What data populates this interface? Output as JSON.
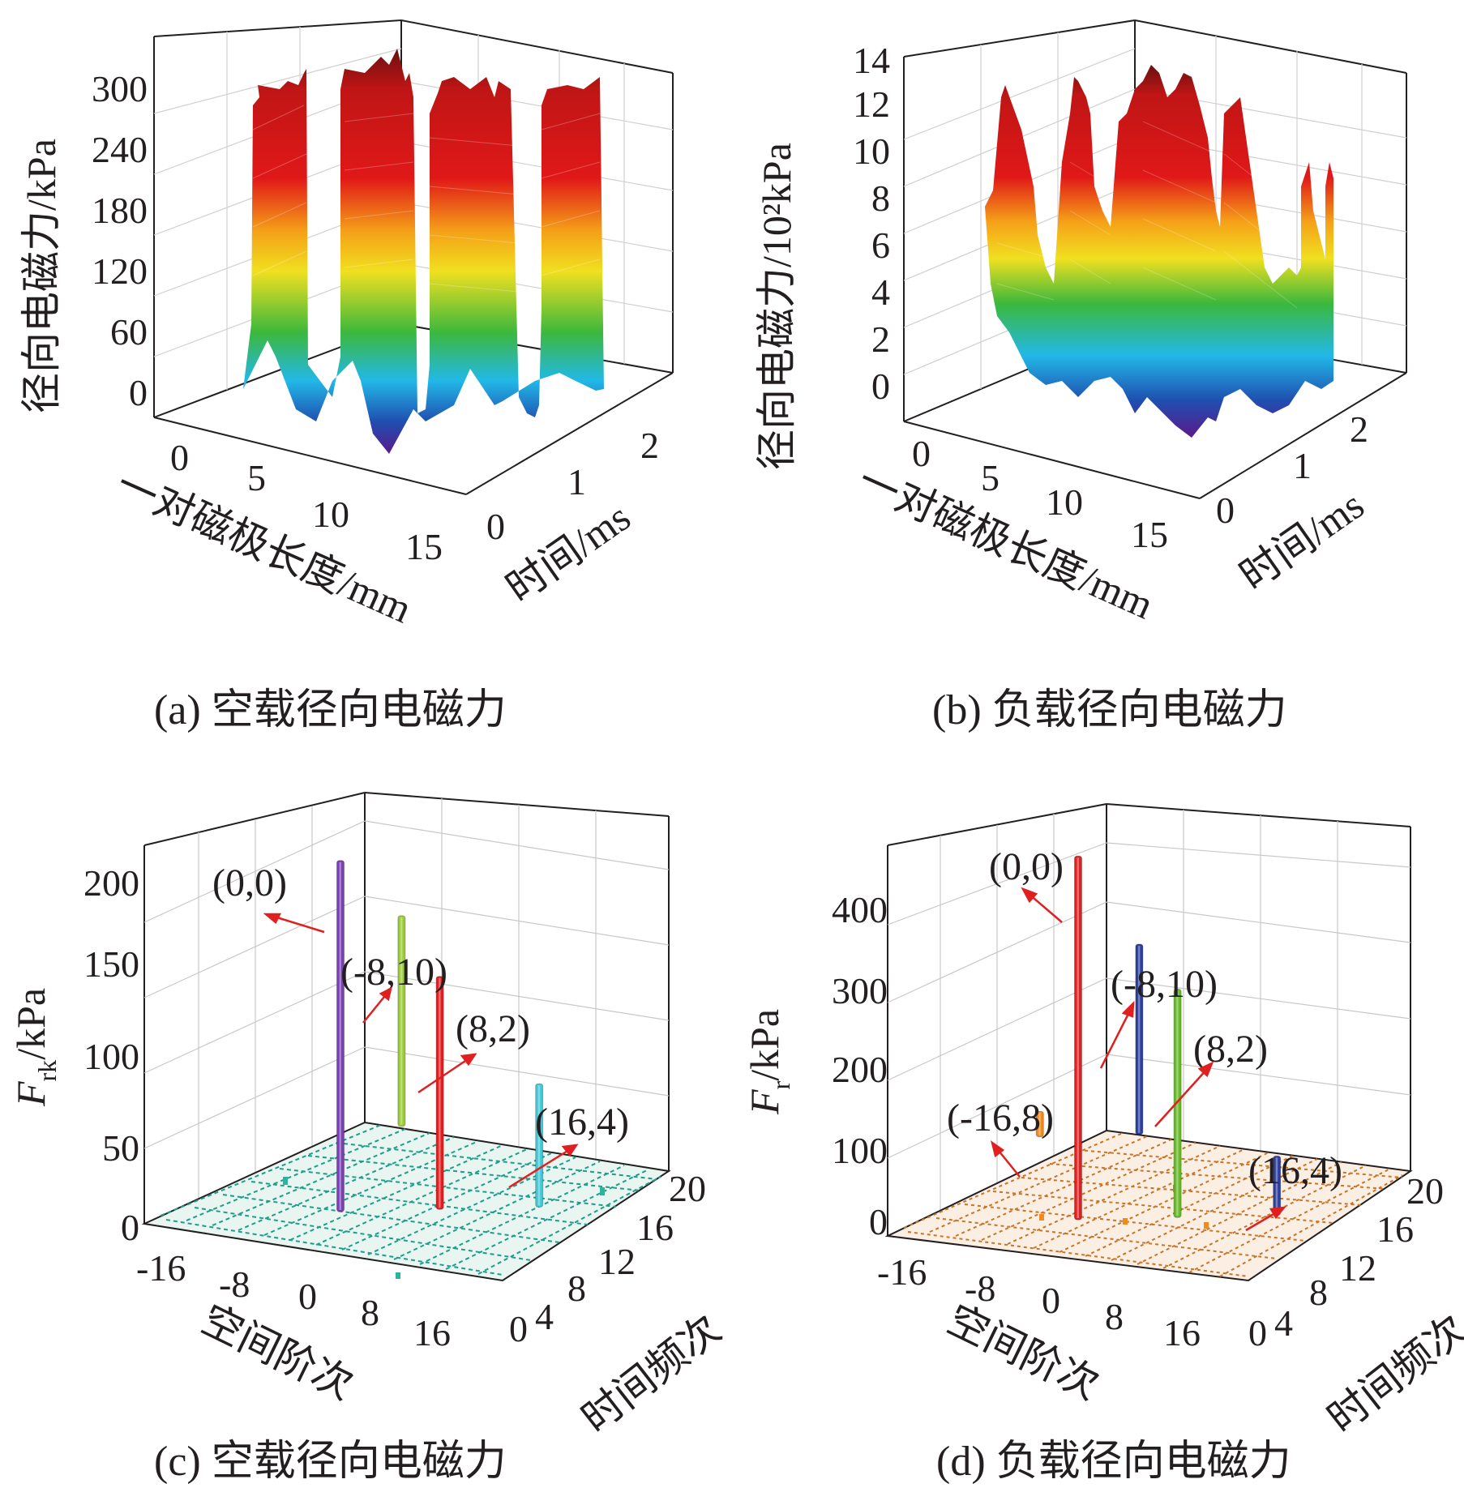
{
  "chart_data": [
    {
      "type": "surface3d",
      "caption": "(a) 空载径向电磁力",
      "zlabel": "径向电磁力/kPa",
      "xlabel": "一对磁极长度/mm",
      "ylabel": "时间/ms",
      "z_ticks": [
        "0",
        "60",
        "120",
        "180",
        "240",
        "300"
      ],
      "x_ticks": [
        "0",
        "5",
        "10",
        "15"
      ],
      "y_ticks": [
        "0",
        "1",
        "2"
      ],
      "zlim": [
        0,
        330
      ],
      "xlim": [
        0,
        15
      ],
      "ylim": [
        0,
        2.2
      ],
      "colormap": [
        "#5a1a8c",
        "#1f4fb0",
        "#22b8e8",
        "#3cb83c",
        "#f0e020",
        "#f5a018",
        "#e01818",
        "#7a1010"
      ],
      "profile_x_mm": [
        0,
        0.5,
        0.8,
        1.8,
        2.0,
        5.3,
        5.5,
        6.4,
        6.6,
        9.3,
        9.5,
        10.3,
        10.5,
        13.6,
        13.8,
        14.6,
        15.0
      ],
      "profile_z_kpa": [
        0,
        260,
        300,
        300,
        280,
        280,
        0,
        0,
        300,
        300,
        0,
        0,
        300,
        300,
        300,
        0,
        0
      ]
    },
    {
      "type": "surface3d",
      "caption": "(b) 负载径向电磁力",
      "zlabel": "径向电磁力/10²kPa",
      "xlabel": "一对磁极长度/mm",
      "ylabel": "时间/ms",
      "z_ticks": [
        "0",
        "2",
        "4",
        "6",
        "8",
        "10",
        "12",
        "14"
      ],
      "x_ticks": [
        "0",
        "5",
        "10",
        "15"
      ],
      "y_ticks": [
        "0",
        "1",
        "2"
      ],
      "zlim": [
        0,
        14.5
      ],
      "xlim": [
        0,
        15
      ],
      "ylim": [
        0,
        2.2
      ],
      "colormap": [
        "#5a1a8c",
        "#1f4fb0",
        "#22b8e8",
        "#3cb83c",
        "#f0e020",
        "#f5a018",
        "#e01818",
        "#7a1010"
      ],
      "profile_x_mm": [
        0,
        0.8,
        1.6,
        2.8,
        3.5,
        4.2,
        5.0,
        6.0,
        7.2,
        8.0,
        8.8,
        10.0,
        11.0,
        12.0,
        12.8,
        13.8,
        15.0
      ],
      "profile_z_kpa100": [
        7,
        12,
        4,
        1,
        3,
        11,
        7,
        1,
        2,
        12,
        12,
        5,
        1,
        9,
        10,
        2,
        9
      ]
    },
    {
      "type": "bar3d",
      "caption": "(c) 空载径向电磁力",
      "zlabel": "F_rk/kPa",
      "xlabel": "空间阶次",
      "ylabel": "时间频次",
      "z_ticks": [
        "0",
        "50",
        "100",
        "150",
        "200"
      ],
      "x_ticks": [
        "-16",
        "-8",
        "0",
        "8",
        "16"
      ],
      "y_ticks": [
        "0",
        "4",
        "8",
        "12",
        "16",
        "20"
      ],
      "zlim": [
        0,
        220
      ],
      "xlim": [
        -20,
        20
      ],
      "ylim": [
        0,
        20
      ],
      "bars": [
        {
          "label": "(0,0)",
          "order": 0,
          "freq": 0,
          "value": 205,
          "color": "#7b3fb5"
        },
        {
          "label": "(-8,10)",
          "order": -8,
          "freq": 10,
          "value": 123,
          "color": "#9acd32"
        },
        {
          "label": "(8,2)",
          "order": 8,
          "freq": 2,
          "value": 136,
          "color": "#e02020"
        },
        {
          "label": "(16,4)",
          "order": 16,
          "freq": 4,
          "value": 72,
          "color": "#40c8d8"
        }
      ],
      "floor_color": "#1f9c8a"
    },
    {
      "type": "bar3d",
      "caption": "(d) 负载径向电磁力",
      "zlabel": "F_r/kPa",
      "xlabel": "空间阶次",
      "ylabel": "时间频次",
      "z_ticks": [
        "0",
        "100",
        "200",
        "300",
        "400"
      ],
      "x_ticks": [
        "-16",
        "-8",
        "0",
        "8",
        "16"
      ],
      "y_ticks": [
        "0",
        "4",
        "8",
        "12",
        "16",
        "20"
      ],
      "zlim": [
        0,
        460
      ],
      "xlim": [
        -20,
        20
      ],
      "ylim": [
        0,
        20
      ],
      "bars": [
        {
          "label": "(0,0)",
          "order": 0,
          "freq": 0,
          "value": 430,
          "color": "#e02020"
        },
        {
          "label": "(-8,10)",
          "order": -8,
          "freq": 10,
          "value": 225,
          "color": "#2c3f9e"
        },
        {
          "label": "(8,2)",
          "order": 8,
          "freq": 2,
          "value": 270,
          "color": "#6ab82e"
        },
        {
          "label": "(-16,8)",
          "order": -16,
          "freq": 8,
          "value": 30,
          "color": "#f08a1e"
        },
        {
          "label": "(16,4)",
          "order": 16,
          "freq": 4,
          "value": 70,
          "color": "#2c3f9e"
        }
      ],
      "floor_color": "#c8742a"
    }
  ]
}
